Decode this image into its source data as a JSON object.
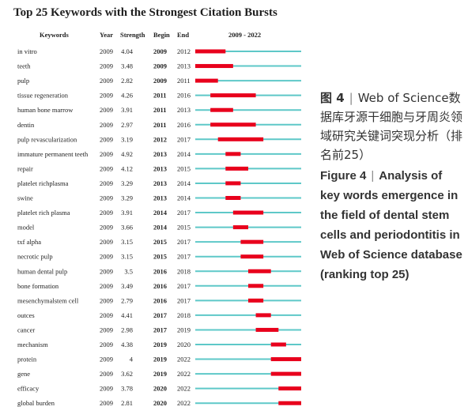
{
  "title": "Top 25 Keywords with the Strongest Citation Bursts",
  "caption": {
    "cn_label": "图 4",
    "cn_text": "Web of Science数据库牙源干细胞与牙周炎领域研究关键词突现分析（排名前25）",
    "en_label": "Figure 4",
    "en_text": "Analysis of key words emergence in the field of dental stem cells and periodontitis in Web of Science database (ranking top 25)"
  },
  "colors": {
    "burst": "#e8001c",
    "baseline": "#5ec8c8"
  },
  "chart_data": {
    "type": "table",
    "columns": [
      "Keywords",
      "Year",
      "Strength",
      "Begin",
      "End",
      "2009 - 2022"
    ],
    "range": [
      2009,
      2022
    ],
    "rows": [
      {
        "keyword": "in vitro",
        "year": "2009",
        "strength": "4.04",
        "begin": "2009",
        "end": "2012"
      },
      {
        "keyword": "teeth",
        "year": "2009",
        "strength": "3.48",
        "begin": "2009",
        "end": "2013"
      },
      {
        "keyword": "pulp",
        "year": "2009",
        "strength": "2.82",
        "begin": "2009",
        "end": "2011"
      },
      {
        "keyword": "tissue regeneration",
        "year": "2009",
        "strength": "4.26",
        "begin": "2011",
        "end": "2016"
      },
      {
        "keyword": "human bone marrow",
        "year": "2009",
        "strength": "3.91",
        "begin": "2011",
        "end": "2013"
      },
      {
        "keyword": "dentin",
        "year": "2009",
        "strength": "2.97",
        "begin": "2011",
        "end": "2016"
      },
      {
        "keyword": "pulp revascularization",
        "year": "2009",
        "strength": "3.19",
        "begin": "2012",
        "end": "2017"
      },
      {
        "keyword": "immature permanent teeth",
        "year": "2009",
        "strength": "4.92",
        "begin": "2013",
        "end": "2014"
      },
      {
        "keyword": "repair",
        "year": "2009",
        "strength": "4.12",
        "begin": "2013",
        "end": "2015"
      },
      {
        "keyword": "platelet richplasma",
        "year": "2009",
        "strength": "3.29",
        "begin": "2013",
        "end": "2014"
      },
      {
        "keyword": "swine",
        "year": "2009",
        "strength": "3.29",
        "begin": "2013",
        "end": "2014"
      },
      {
        "keyword": "platelet rich plasma",
        "year": "2009",
        "strength": "3.91",
        "begin": "2014",
        "end": "2017"
      },
      {
        "keyword": "model",
        "year": "2009",
        "strength": "3.66",
        "begin": "2014",
        "end": "2015"
      },
      {
        "keyword": "txf alpha",
        "year": "2009",
        "strength": "3.15",
        "begin": "2015",
        "end": "2017"
      },
      {
        "keyword": "necrotic pulp",
        "year": "2009",
        "strength": "3.15",
        "begin": "2015",
        "end": "2017"
      },
      {
        "keyword": "human dental pulp",
        "year": "2009",
        "strength": "3.5",
        "begin": "2016",
        "end": "2018"
      },
      {
        "keyword": "bone formation",
        "year": "2009",
        "strength": "3.49",
        "begin": "2016",
        "end": "2017"
      },
      {
        "keyword": "mesenchymalstem cell",
        "year": "2009",
        "strength": "2.79",
        "begin": "2016",
        "end": "2017"
      },
      {
        "keyword": "outces",
        "year": "2009",
        "strength": "4.41",
        "begin": "2017",
        "end": "2018"
      },
      {
        "keyword": "cancer",
        "year": "2009",
        "strength": "2.98",
        "begin": "2017",
        "end": "2019"
      },
      {
        "keyword": "mechanism",
        "year": "2009",
        "strength": "4.38",
        "begin": "2019",
        "end": "2020"
      },
      {
        "keyword": "protein",
        "year": "2009",
        "strength": "4",
        "begin": "2019",
        "end": "2022"
      },
      {
        "keyword": "gene",
        "year": "2009",
        "strength": "3.62",
        "begin": "2019",
        "end": "2022"
      },
      {
        "keyword": "efficacy",
        "year": "2009",
        "strength": "3.78",
        "begin": "2020",
        "end": "2022"
      },
      {
        "keyword": "global burden",
        "year": "2009",
        "strength": "2.81",
        "begin": "2020",
        "end": "2022"
      }
    ]
  }
}
